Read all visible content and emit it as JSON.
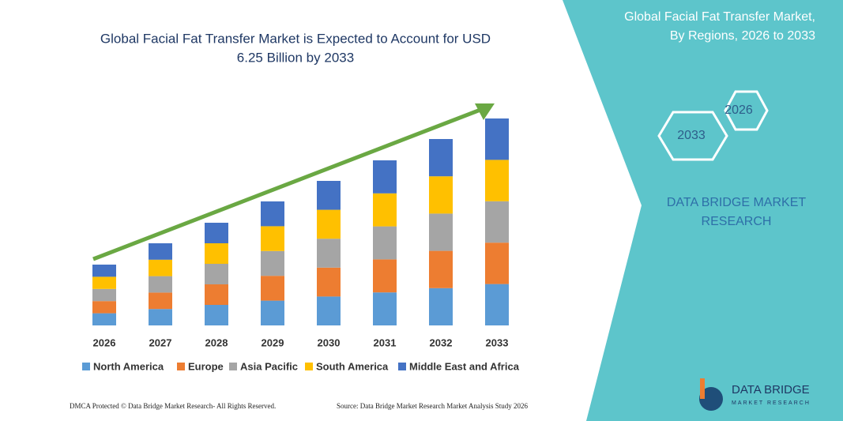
{
  "chart_data": {
    "type": "bar",
    "stacked": true,
    "title": [
      "Global Facial Fat Transfer Market is Expected to Account for USD",
      "6.25 Billion by 2033"
    ],
    "categories": [
      "2026",
      "2027",
      "2028",
      "2029",
      "2030",
      "2031",
      "2032",
      "2033"
    ],
    "series": [
      {
        "name": "North America",
        "color": "#5b9bd5",
        "values": [
          15.4,
          20.8,
          26,
          31.4,
          36.6,
          41.8,
          47.2,
          52.4
        ]
      },
      {
        "name": "Europe",
        "color": "#ed7d31",
        "values": [
          15.4,
          20.8,
          26,
          31.4,
          36.6,
          41.8,
          47.2,
          52.4
        ]
      },
      {
        "name": "Asia Pacific",
        "color": "#a5a5a5",
        "values": [
          15.4,
          20.8,
          26,
          31.4,
          36.6,
          41.8,
          47.2,
          52.4
        ]
      },
      {
        "name": "South America",
        "color": "#ffc000",
        "values": [
          15.4,
          20.8,
          26,
          31.4,
          36.6,
          41.8,
          47.2,
          52.4
        ]
      },
      {
        "name": "Middle East and Africa",
        "color": "#4472c4",
        "values": [
          15.4,
          20.8,
          26,
          31.4,
          36.6,
          41.8,
          47.2,
          52.4
        ]
      }
    ]
  },
  "side_panel": {
    "title": [
      "Global Facial Fat Transfer Market,",
      "By Regions, 2026 to 2033"
    ],
    "hexagons": [
      "2026",
      "2033"
    ],
    "brand": [
      "DATA BRIDGE MARKET",
      "RESEARCH"
    ],
    "logo": [
      "DATA BRIDGE",
      "MARKET RESEARCH"
    ]
  },
  "footer": {
    "left": "DMCA Protected © Data Bridge Market Research- All Rights Reserved.",
    "right": "Source: Data Bridge Market Research Market Analysis Study 2026"
  }
}
